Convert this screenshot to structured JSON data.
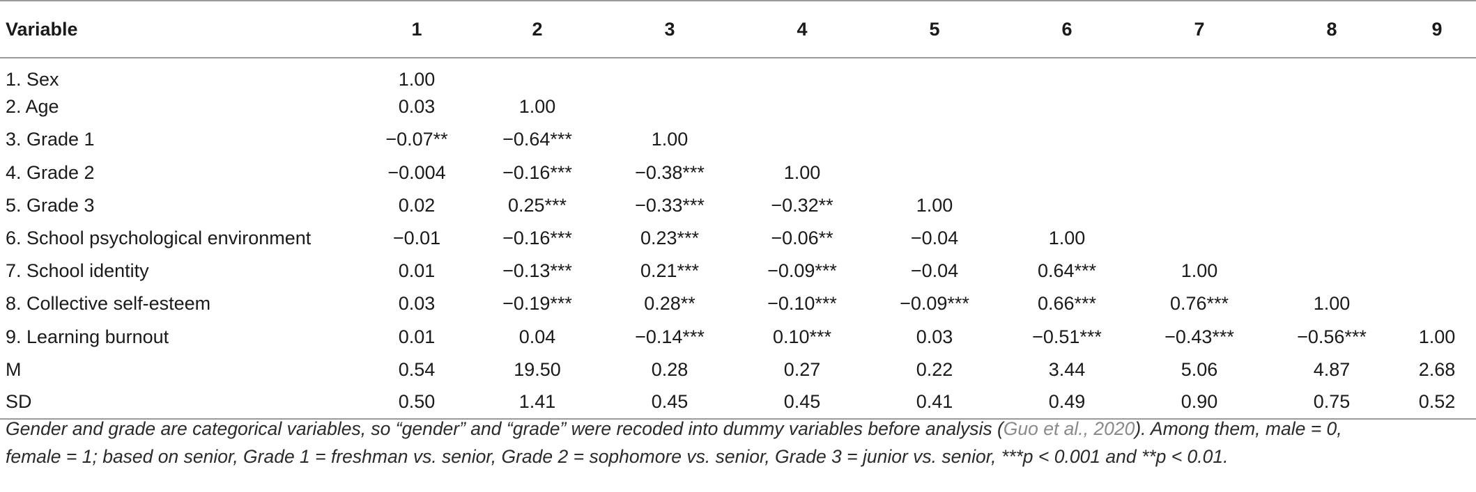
{
  "table": {
    "headers": [
      "Variable",
      "1",
      "2",
      "3",
      "4",
      "5",
      "6",
      "7",
      "8",
      "9"
    ],
    "rows": [
      {
        "label": "1. Sex",
        "cells": [
          "1.00",
          "",
          "",
          "",
          "",
          "",
          "",
          "",
          ""
        ]
      },
      {
        "label": "2. Age",
        "cells": [
          "0.03",
          "1.00",
          "",
          "",
          "",
          "",
          "",
          "",
          ""
        ]
      },
      {
        "label": "3. Grade 1",
        "cells": [
          "−0.07**",
          "−0.64***",
          "1.00",
          "",
          "",
          "",
          "",
          "",
          ""
        ]
      },
      {
        "label": "4. Grade 2",
        "cells": [
          "−0.004",
          "−0.16***",
          "−0.38***",
          "1.00",
          "",
          "",
          "",
          "",
          ""
        ]
      },
      {
        "label": "5. Grade 3",
        "cells": [
          "0.02",
          "0.25***",
          "−0.33***",
          "−0.32**",
          "1.00",
          "",
          "",
          "",
          ""
        ]
      },
      {
        "label": "6. School psychological environment",
        "cells": [
          "−0.01",
          "−0.16***",
          "0.23***",
          "−0.06**",
          "−0.04",
          "1.00",
          "",
          "",
          ""
        ]
      },
      {
        "label": "7. School identity",
        "cells": [
          "0.01",
          "−0.13***",
          "0.21***",
          "−0.09***",
          "−0.04",
          "0.64***",
          "1.00",
          "",
          ""
        ]
      },
      {
        "label": "8. Collective self-esteem",
        "cells": [
          "0.03",
          "−0.19***",
          "0.28**",
          "−0.10***",
          "−0.09***",
          "0.66***",
          "0.76***",
          "1.00",
          ""
        ]
      },
      {
        "label": "9. Learning burnout",
        "cells": [
          "0.01",
          "0.04",
          "−0.14***",
          "0.10***",
          "0.03",
          "−0.51***",
          "−0.43***",
          "−0.56***",
          "1.00"
        ]
      },
      {
        "label": "M",
        "cells": [
          "0.54",
          "19.50",
          "0.28",
          "0.27",
          "0.22",
          "3.44",
          "5.06",
          "4.87",
          "2.68"
        ]
      },
      {
        "label": "SD",
        "cells": [
          "0.50",
          "1.41",
          "0.45",
          "0.45",
          "0.41",
          "0.49",
          "0.90",
          "0.75",
          "0.52"
        ]
      }
    ]
  },
  "note": {
    "line1_before": "Gender and grade are categorical variables, so “gender” and “grade” were recoded into dummy variables before analysis (",
    "citation": "Guo et al., 2020",
    "line1_after": "). Among them, male = 0,",
    "line2": "female = 1; based on senior, Grade 1 = freshman vs. senior, Grade 2 = sophomore vs. senior, Grade 3 = junior vs. senior, ***p < 0.001 and **p < 0.01."
  }
}
